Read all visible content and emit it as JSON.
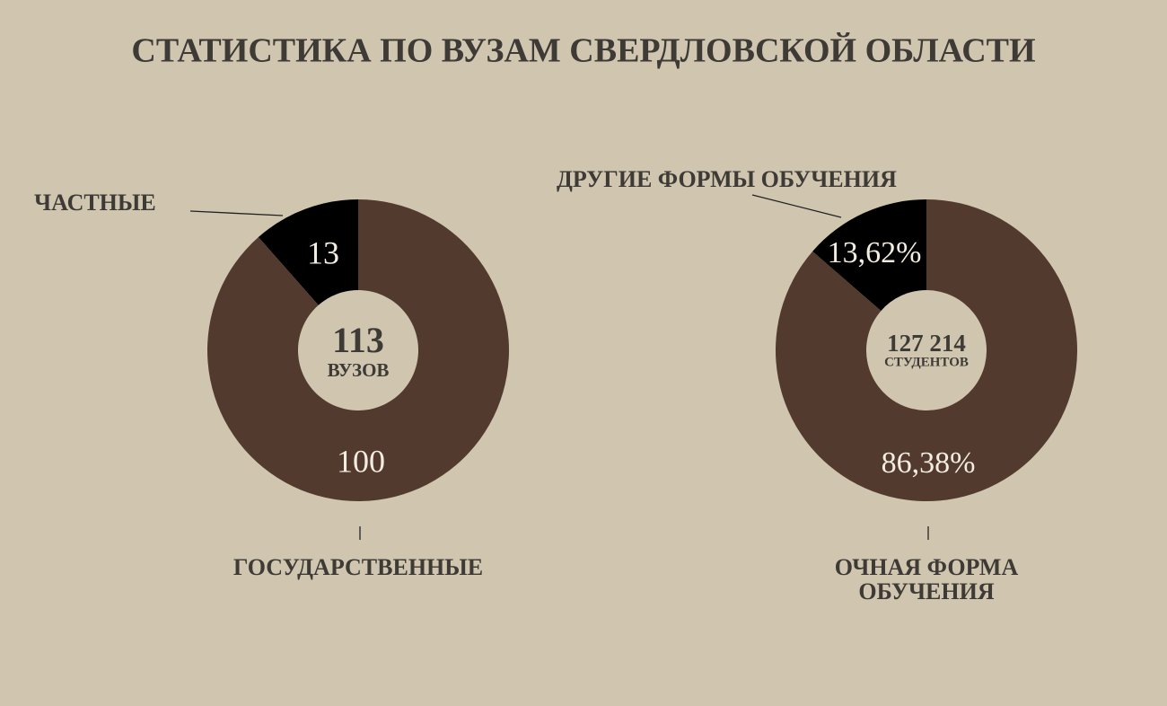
{
  "title": "СТАТИСТИКА ПО ВУЗАМ СВЕРДЛОВСКОЙ ОБЛАСТИ",
  "chart_data": [
    {
      "type": "donut",
      "categories": [
        "ЧАСТНЫЕ",
        "ГОСУДАРСТВЕННЫЕ"
      ],
      "values": [
        13,
        100
      ],
      "colors": [
        "#000000",
        "#523b2e"
      ],
      "total": 113,
      "total_label": "ВУЗОВ"
    },
    {
      "type": "donut",
      "categories": [
        "ДРУГИЕ ФОРМЫ ОБУЧЕНИЯ",
        "ОЧНАЯ ФОРМА ОБУЧЕНИЯ"
      ],
      "values": [
        13.62,
        86.38
      ],
      "value_labels": [
        "13,62%",
        "86,38%"
      ],
      "colors": [
        "#000000",
        "#523b2e"
      ],
      "total": {
        "value": 127214,
        "label": "127 214"
      },
      "total_label": "СТУДЕНТОВ"
    }
  ]
}
